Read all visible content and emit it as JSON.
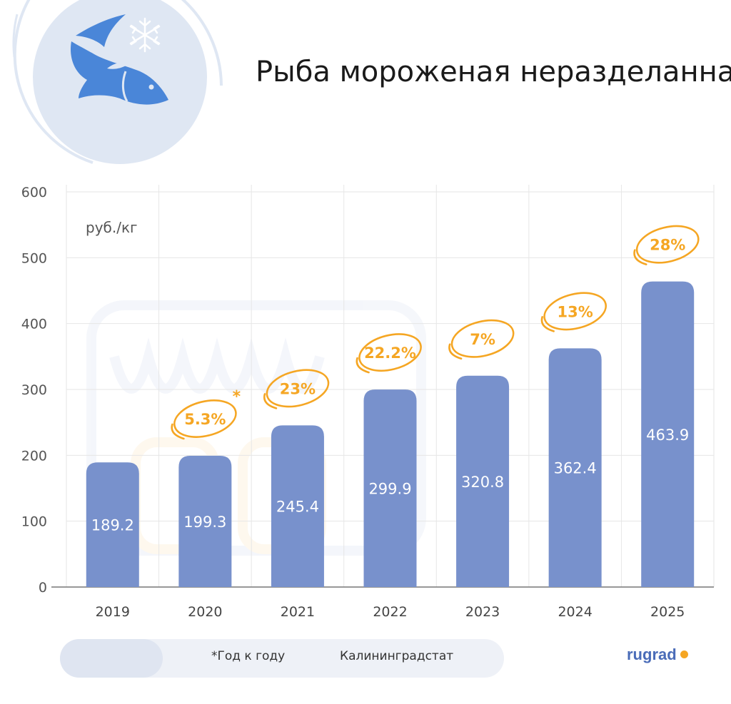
{
  "title": "Рыба мороженая неразделанная",
  "footer": {
    "note": "*Год к году",
    "source": "Калининградстат",
    "brand": "rugrad"
  },
  "colors": {
    "bar": "#7891cc",
    "accent": "#f5a623",
    "icon": "#4a86d8",
    "grid": "#e6e6e6"
  },
  "chart_data": {
    "type": "bar",
    "title": "Рыба мороженая неразделанная",
    "unit_label": "руб./кг",
    "categories": [
      "2019",
      "2020",
      "2021",
      "2022",
      "2023",
      "2024",
      "2025"
    ],
    "values": [
      189.2,
      199.3,
      245.4,
      299.9,
      320.8,
      362.4,
      463.9
    ],
    "value_labels": [
      "189.2",
      "199.3",
      "245.4",
      "299.9",
      "320.8",
      "362.4",
      "463.9"
    ],
    "growth_labels": [
      "",
      "5.3%",
      "23%",
      "22.2%",
      "7%",
      "13%",
      "28%"
    ],
    "growth_asterisk": "*",
    "ylim": [
      0,
      600
    ],
    "yticks": [
      0,
      100,
      200,
      300,
      400,
      500,
      600
    ],
    "ytick_labels": [
      "0",
      "100",
      "200",
      "300",
      "400",
      "500",
      "600"
    ],
    "grid": true
  }
}
